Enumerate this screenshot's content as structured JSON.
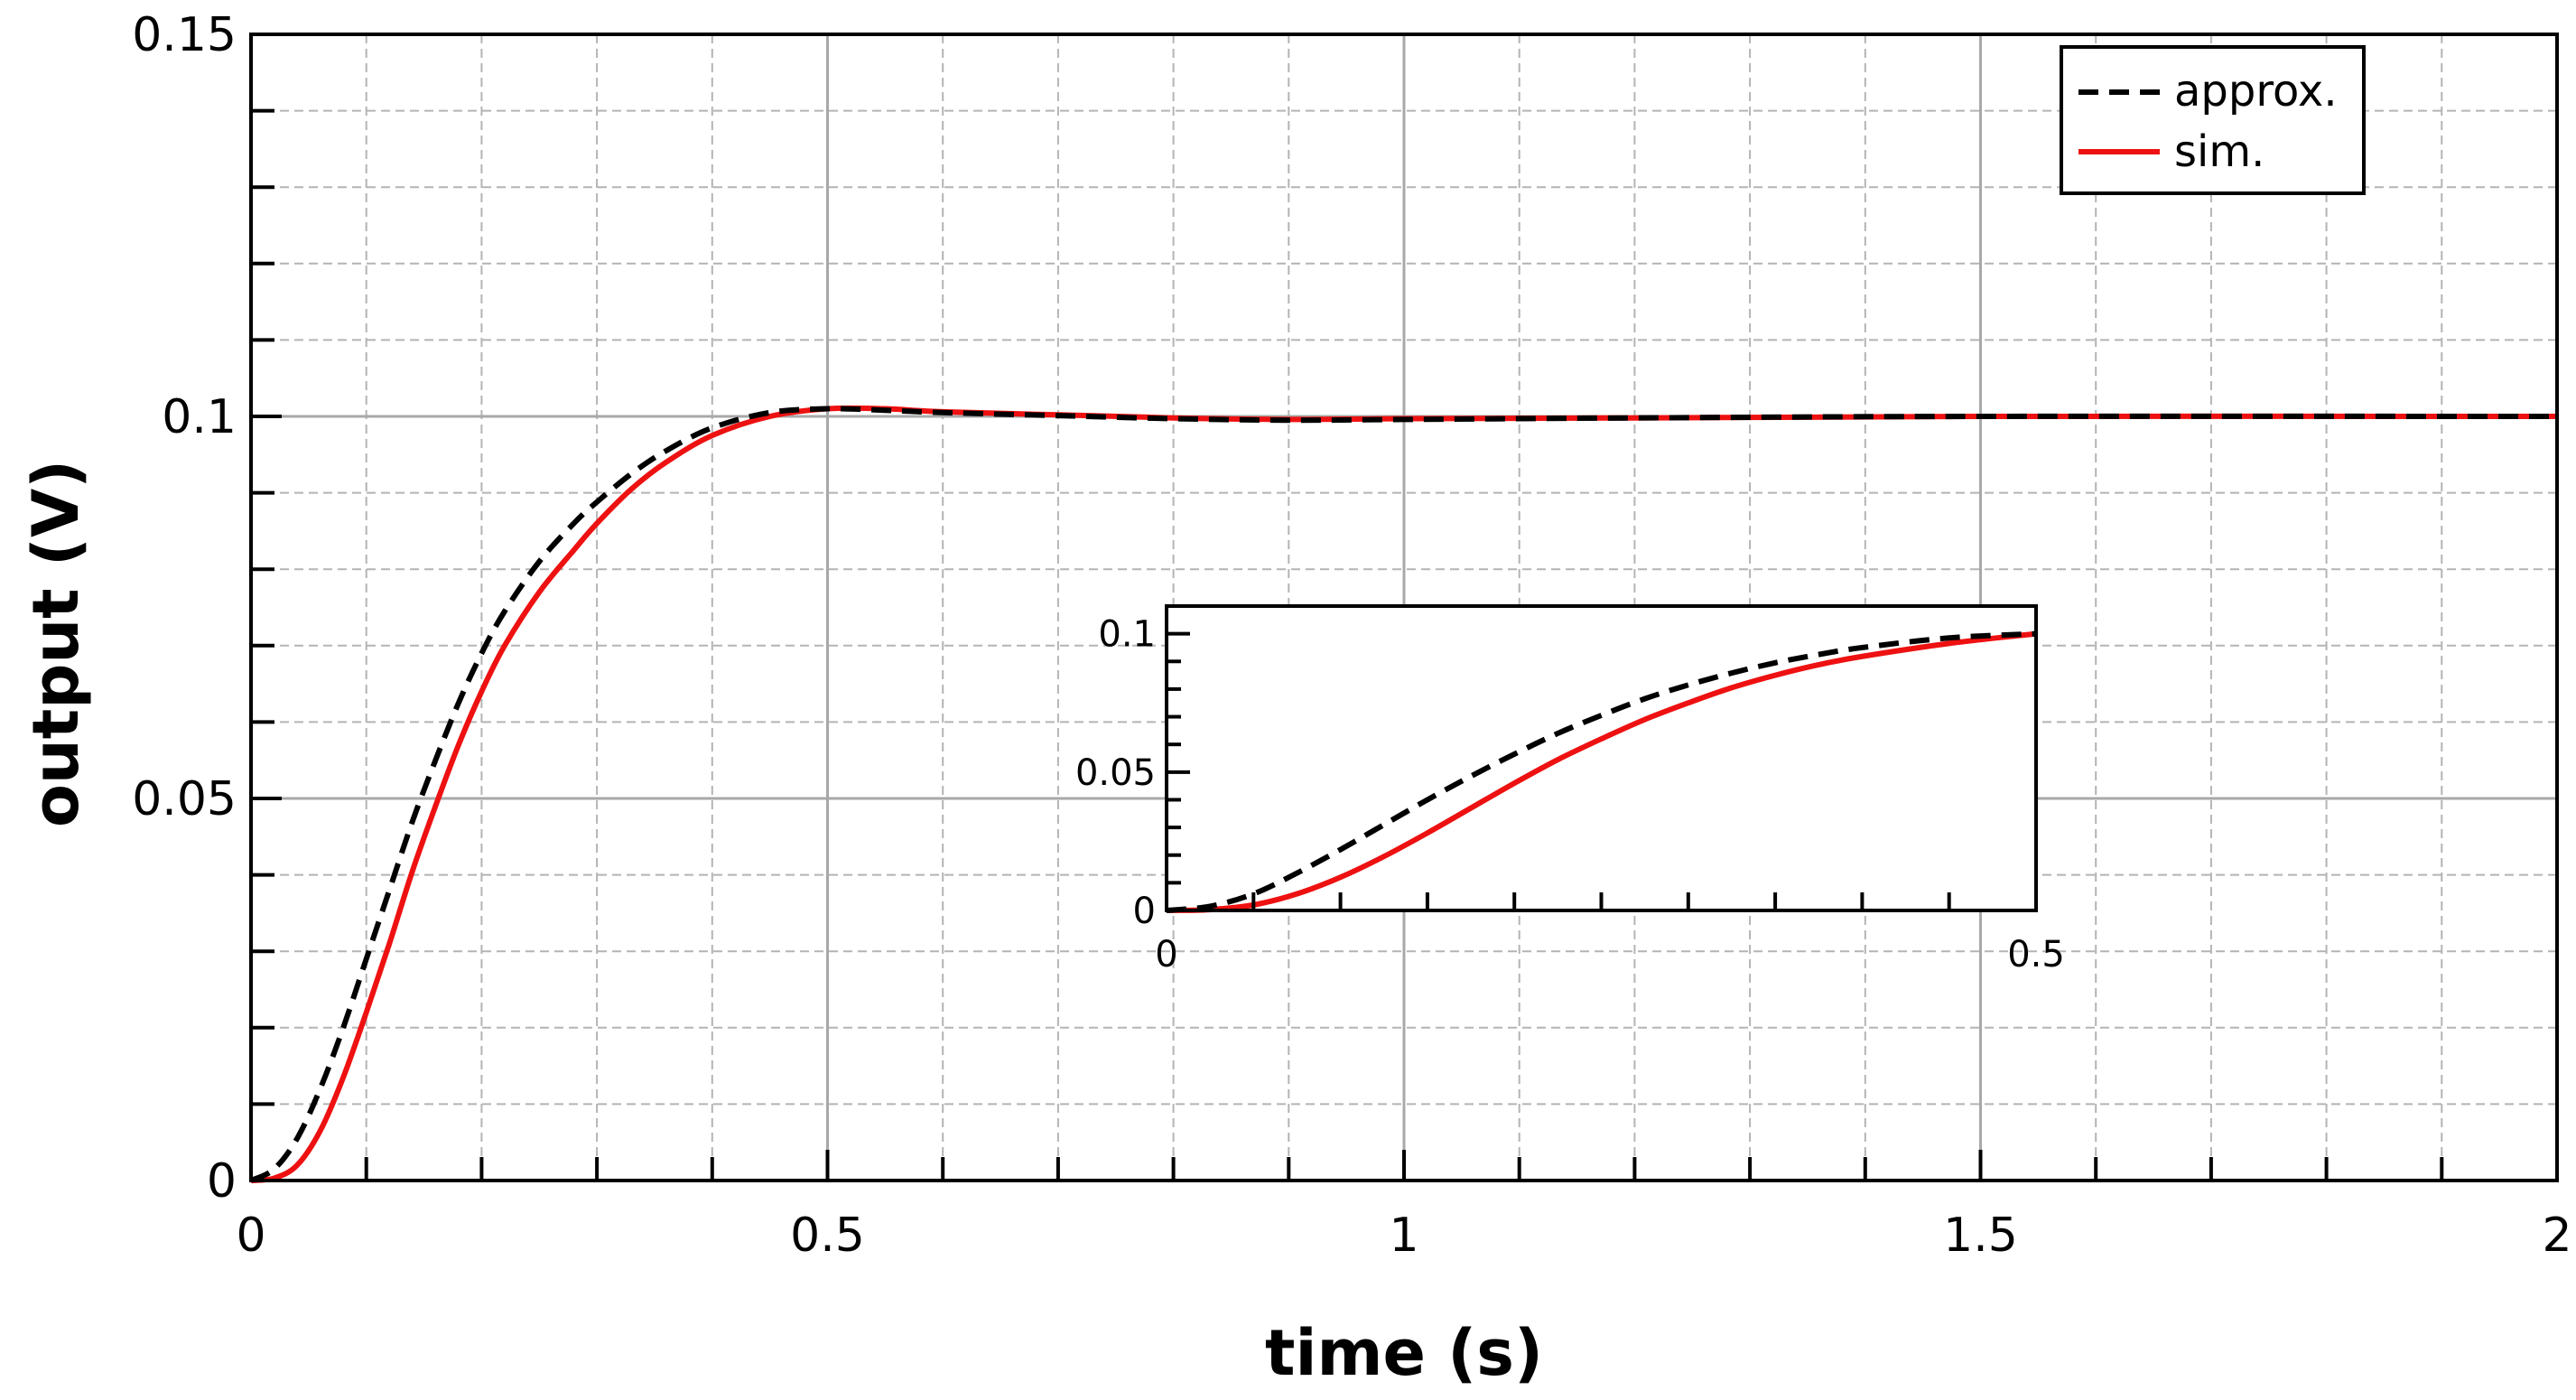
{
  "chart_data": [
    {
      "type": "line",
      "xlabel": "time (s)",
      "ylabel": "output (V)",
      "xlim": [
        0,
        2
      ],
      "ylim": [
        0,
        0.15
      ],
      "x_ticks": [
        0,
        0.5,
        1,
        1.5,
        2
      ],
      "x_tick_labels": [
        "0",
        "0.5",
        "1",
        "1.5",
        "2"
      ],
      "y_ticks": [
        0,
        0.05,
        0.1,
        0.15
      ],
      "y_tick_labels": [
        "0",
        "0.05",
        "0.1",
        "0.15"
      ],
      "grid": true,
      "legend_position": "top-right",
      "series": [
        {
          "name": "approx.",
          "color": "#000000",
          "style": "dashed",
          "x": [
            0,
            0.02,
            0.04,
            0.06,
            0.08,
            0.1,
            0.12,
            0.14,
            0.16,
            0.18,
            0.2,
            0.22,
            0.25,
            0.28,
            0.3,
            0.33,
            0.36,
            0.4,
            0.45,
            0.5,
            0.55,
            0.6,
            0.7,
            0.8,
            0.9,
            1.0,
            1.2,
            1.5,
            2.0
          ],
          "values": [
            0,
            0.0015,
            0.0055,
            0.012,
            0.02,
            0.029,
            0.038,
            0.047,
            0.055,
            0.0625,
            0.069,
            0.0745,
            0.081,
            0.086,
            0.0888,
            0.0925,
            0.0955,
            0.0985,
            0.1005,
            0.101,
            0.1008,
            0.1005,
            0.1001,
            0.0997,
            0.0995,
            0.0996,
            0.0998,
            0.1,
            0.1
          ]
        },
        {
          "name": "sim.",
          "color": "#ee1111",
          "style": "solid",
          "x": [
            0,
            0.02,
            0.04,
            0.06,
            0.08,
            0.1,
            0.12,
            0.14,
            0.16,
            0.18,
            0.2,
            0.22,
            0.25,
            0.28,
            0.3,
            0.33,
            0.36,
            0.4,
            0.45,
            0.5,
            0.55,
            0.6,
            0.7,
            0.8,
            0.9,
            1.0,
            1.2,
            1.5,
            2.0
          ],
          "values": [
            0,
            0.0003,
            0.002,
            0.0065,
            0.0135,
            0.022,
            0.031,
            0.0405,
            0.049,
            0.057,
            0.064,
            0.07,
            0.077,
            0.0825,
            0.086,
            0.0905,
            0.094,
            0.0975,
            0.1,
            0.101,
            0.101,
            0.1006,
            0.1002,
            0.0998,
            0.0996,
            0.0997,
            0.0998,
            0.1,
            0.1
          ]
        }
      ]
    },
    {
      "type": "line",
      "role": "inset",
      "xlim": [
        0,
        0.5
      ],
      "ylim": [
        0,
        0.11
      ],
      "x_ticks": [
        0,
        0.5
      ],
      "x_tick_labels": [
        "0",
        "0.5"
      ],
      "y_ticks": [
        0,
        0.05,
        0.1
      ],
      "y_tick_labels": [
        "0",
        "0.05",
        "0.1"
      ],
      "grid": false,
      "series": [
        {
          "name": "approx.",
          "color": "#000000",
          "style": "dashed",
          "x": [
            0,
            0.025,
            0.05,
            0.075,
            0.1,
            0.125,
            0.15,
            0.175,
            0.2,
            0.225,
            0.25,
            0.275,
            0.3,
            0.325,
            0.35,
            0.375,
            0.4,
            0.45,
            0.5
          ],
          "values": [
            0,
            0.0015,
            0.006,
            0.0135,
            0.022,
            0.031,
            0.04,
            0.0485,
            0.0565,
            0.064,
            0.0705,
            0.0765,
            0.0815,
            0.0858,
            0.0895,
            0.0925,
            0.095,
            0.0985,
            0.1
          ]
        },
        {
          "name": "sim.",
          "color": "#ee1111",
          "style": "solid",
          "x": [
            0,
            0.025,
            0.05,
            0.075,
            0.1,
            0.125,
            0.15,
            0.175,
            0.2,
            0.225,
            0.25,
            0.275,
            0.3,
            0.325,
            0.35,
            0.375,
            0.4,
            0.45,
            0.5
          ],
          "values": [
            0,
            0.0003,
            0.002,
            0.006,
            0.012,
            0.0195,
            0.028,
            0.037,
            0.046,
            0.0545,
            0.062,
            0.069,
            0.075,
            0.0805,
            0.085,
            0.0888,
            0.0918,
            0.0965,
            0.1
          ]
        }
      ]
    }
  ]
}
